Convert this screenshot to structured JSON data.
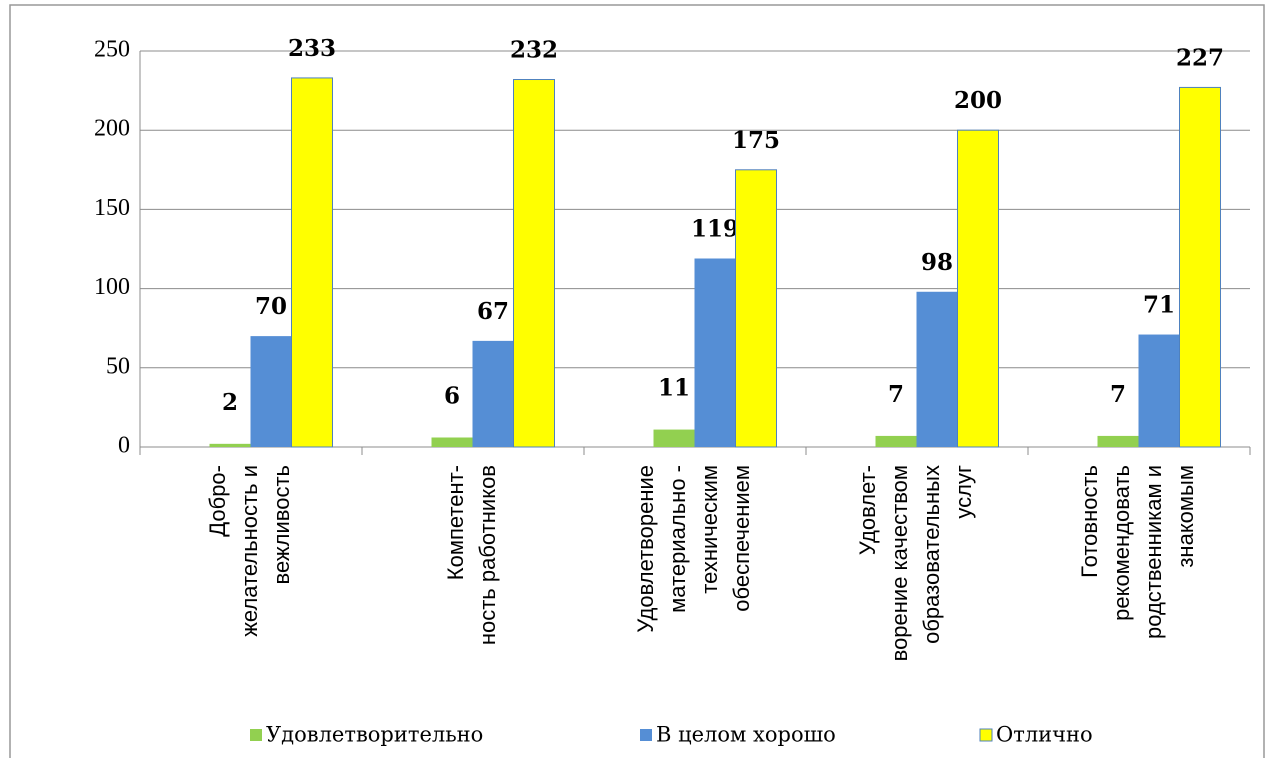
{
  "chart_data": {
    "type": "bar",
    "categories": [
      [
        "Добро-",
        "желательность и",
        "вежливость"
      ],
      [
        "Компетент-",
        "ность работников"
      ],
      [
        "Удовлетворение",
        "материально -",
        "техническим",
        "обеспечением"
      ],
      [
        "Удовлет-",
        "ворение качеством",
        "образовательных",
        "услуг"
      ],
      [
        "Готовность",
        "рекомендовать",
        "родственникам и",
        "знакомым"
      ]
    ],
    "series": [
      {
        "name": "Удовлетворительно",
        "color": "#92d050",
        "values": [
          2,
          6,
          11,
          7,
          7
        ]
      },
      {
        "name": "В целом хорошо",
        "color": "#558ed5",
        "values": [
          70,
          67,
          119,
          98,
          71
        ]
      },
      {
        "name": "Отлично",
        "color": "#ffff00",
        "values": [
          233,
          232,
          175,
          200,
          227
        ]
      }
    ],
    "ylim": [
      0,
      250
    ],
    "yticks": [
      0,
      50,
      100,
      150,
      200,
      250
    ],
    "grid": true,
    "legend": "bottom"
  }
}
